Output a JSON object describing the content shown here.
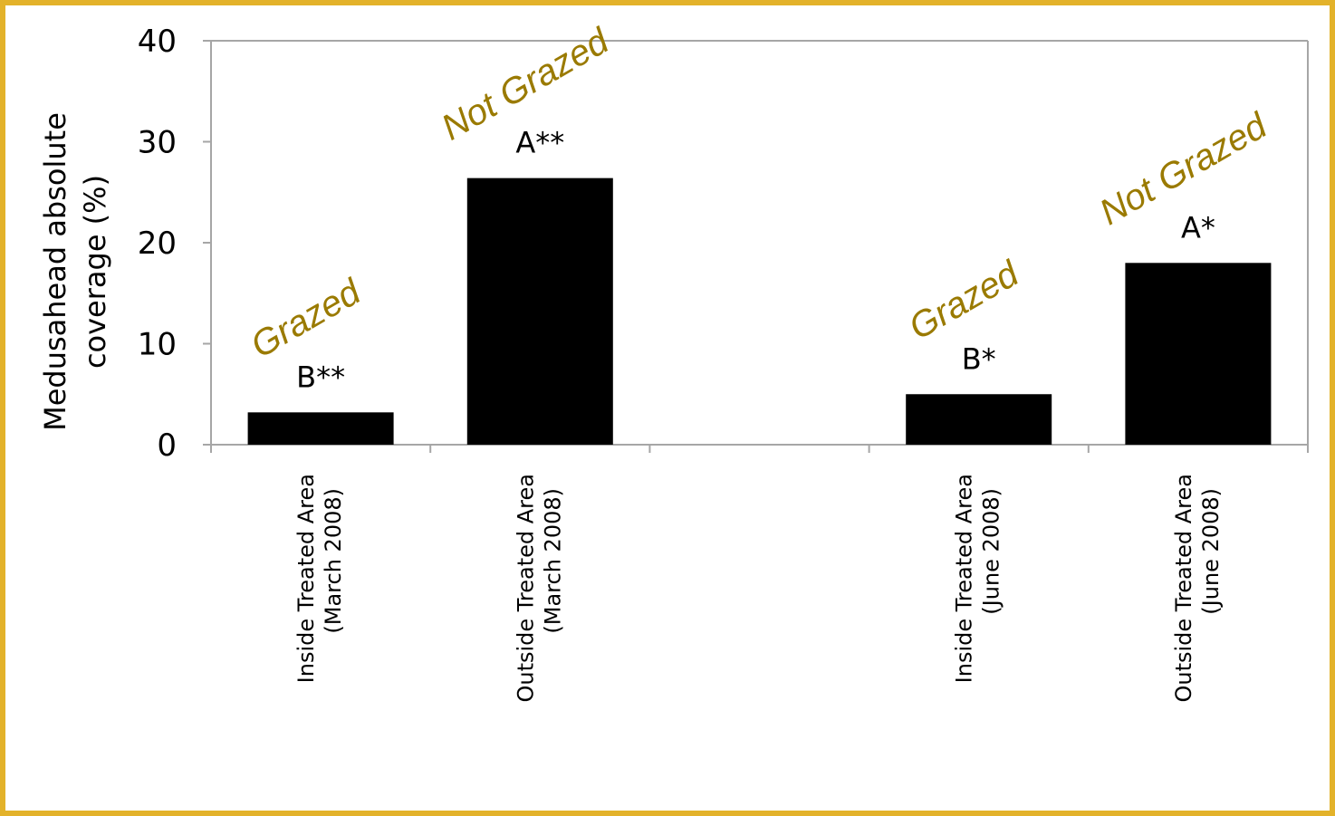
{
  "chart_data": {
    "type": "bar",
    "categories": [
      [
        "Inside Treated Area",
        "(March 2008)"
      ],
      [
        "Outside Treated Area",
        "(March 2008)"
      ],
      [
        "",
        ""
      ],
      [
        "Inside Treated Area",
        "(June 2008)"
      ],
      [
        "Outside Treated Area",
        "(June 2008)"
      ]
    ],
    "values": [
      3.2,
      26.4,
      null,
      5.0,
      18.0
    ],
    "data_labels": [
      "B**",
      "A**",
      "",
      "B*",
      "A*"
    ],
    "annotations": [
      "Grazed",
      "Not Grazed",
      "",
      "Grazed",
      "Not Grazed"
    ],
    "ylabel": [
      "Medusahead absolute",
      "coverage (%)"
    ],
    "xlabel": "",
    "title": "",
    "ylim": [
      0,
      40
    ],
    "yticks": [
      0,
      10,
      20,
      30,
      40
    ],
    "grid": false,
    "legend": "none",
    "colors": {
      "bar": "#000000",
      "annotation": "#9A7A00",
      "frame": "#E3B22A",
      "axis": "#A6A6A6"
    }
  }
}
